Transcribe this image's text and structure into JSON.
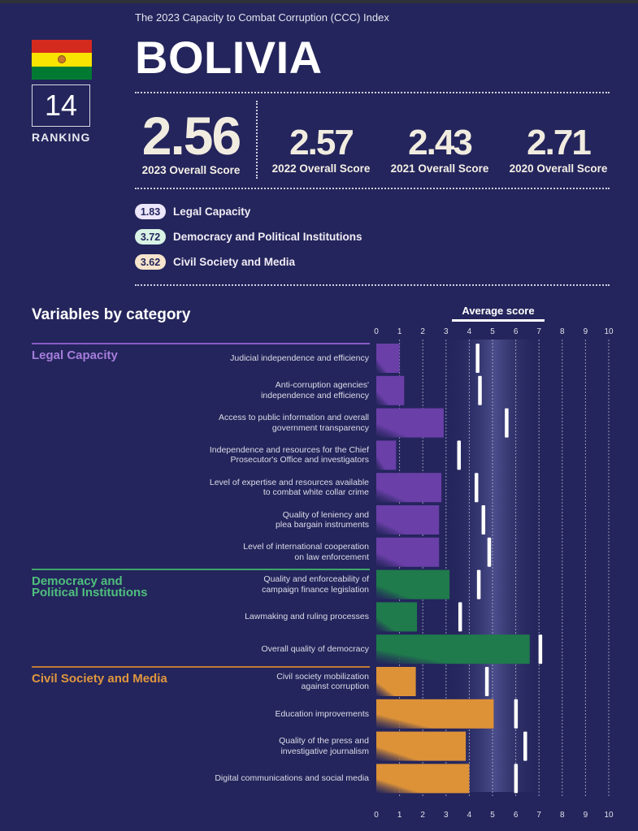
{
  "header": {
    "subtitle": "The 2023 Capacity to Combat Corruption (CCC) Index",
    "country": "BOLIVIA",
    "ranking_value": "14",
    "ranking_label": "RANKING",
    "flag_icon": "bolivia-flag-icon"
  },
  "scores": [
    {
      "value": "2.56",
      "label": "2023 Overall Score"
    },
    {
      "value": "2.57",
      "label": "2022 Overall Score"
    },
    {
      "value": "2.43",
      "label": "2021 Overall Score"
    },
    {
      "value": "2.71",
      "label": "2020 Overall Score"
    }
  ],
  "category_summary": [
    {
      "score": "1.83",
      "name": "Legal Capacity",
      "pill_color": "#ece6fb"
    },
    {
      "score": "3.72",
      "name": "Democracy and Political Institutions",
      "pill_color": "#d9f3e6"
    },
    {
      "score": "3.62",
      "name": "Civil Society and Media",
      "pill_color": "#f6e4cc"
    }
  ],
  "section": {
    "title": "Variables by category",
    "average_label": "Average score"
  },
  "chart_data": {
    "type": "bar",
    "orientation": "horizontal",
    "title": "Variables by category",
    "xlim": [
      0,
      10
    ],
    "x_ticks": [
      "0",
      "1",
      "2",
      "3",
      "4",
      "5",
      "6",
      "7",
      "8",
      "9",
      "10"
    ],
    "average_marker_label": "Average score",
    "grid": true,
    "categories": [
      {
        "name": "Legal Capacity",
        "color": "#6a3fa8",
        "label_color": "#a57ddc",
        "variables": [
          {
            "name": "Judicial independence and efficiency",
            "value": 1.0,
            "average": 4.35
          },
          {
            "name": "Anti-corruption agencies' independence and efficiency",
            "value": 1.2,
            "average": 4.45
          },
          {
            "name": "Access to public information and overall government transparency",
            "value": 2.9,
            "average": 5.6
          },
          {
            "name": "Independence and resources for the Chief Prosecutor's Office and investigators",
            "value": 0.85,
            "average": 3.55
          },
          {
            "name": "Level of expertise and resources available to combat white collar crime",
            "value": 2.8,
            "average": 4.3
          },
          {
            "name": "Quality of leniency and plea bargain instruments",
            "value": 2.7,
            "average": 4.6
          },
          {
            "name": "Level of international cooperation on law enforcement",
            "value": 2.7,
            "average": 4.85
          }
        ]
      },
      {
        "name": "Democracy and Political Institutions",
        "color": "#1f7a4c",
        "label_color": "#4fbf7d",
        "variables": [
          {
            "name": "Quality and enforceability of campaign finance legislation",
            "value": 3.15,
            "average": 4.4
          },
          {
            "name": "Lawmaking and ruling processes",
            "value": 1.75,
            "average": 3.6
          },
          {
            "name": "Overall quality of democracy",
            "value": 6.6,
            "average": 7.05
          }
        ]
      },
      {
        "name": "Civil Society and Media",
        "color": "#dd9238",
        "label_color": "#e0963e",
        "variables": [
          {
            "name": "Civil society mobilization against corruption",
            "value": 1.7,
            "average": 4.75
          },
          {
            "name": "Education improvements",
            "value": 5.05,
            "average": 6.0
          },
          {
            "name": "Quality of the press and investigative journalism",
            "value": 3.85,
            "average": 6.4
          },
          {
            "name": "Digital communications and social media",
            "value": 4.0,
            "average": 6.0
          }
        ]
      }
    ]
  },
  "labels": {
    "cat0_line1": "Legal Capacity",
    "cat1_line1": "Democracy and",
    "cat1_line2": "Political Institutions",
    "cat2_line1": "Civil Society and Media",
    "v0": [
      "Judicial independence and efficiency"
    ],
    "v1": [
      "Anti-corruption agencies'",
      "independence and efficiency"
    ],
    "v2": [
      "Access to public information and overall",
      "government transparency"
    ],
    "v3": [
      "Independence and resources for the Chief",
      "Prosecutor's Office and investigators"
    ],
    "v4": [
      "Level of expertise and resources available",
      "to combat white collar crime"
    ],
    "v5": [
      "Quality of leniency and",
      "plea bargain instruments"
    ],
    "v6": [
      "Level of international cooperation",
      "on law enforcement"
    ],
    "v7": [
      "Quality and enforceability of",
      "campaign finance legislation"
    ],
    "v8": [
      "Lawmaking and ruling processes"
    ],
    "v9": [
      "Overall quality of democracy"
    ],
    "v10": [
      "Civil society mobilization",
      "against corruption"
    ],
    "v11": [
      "Education improvements"
    ],
    "v12": [
      "Quality of the press and",
      "investigative journalism"
    ],
    "v13": [
      "Digital communications and social media"
    ]
  }
}
